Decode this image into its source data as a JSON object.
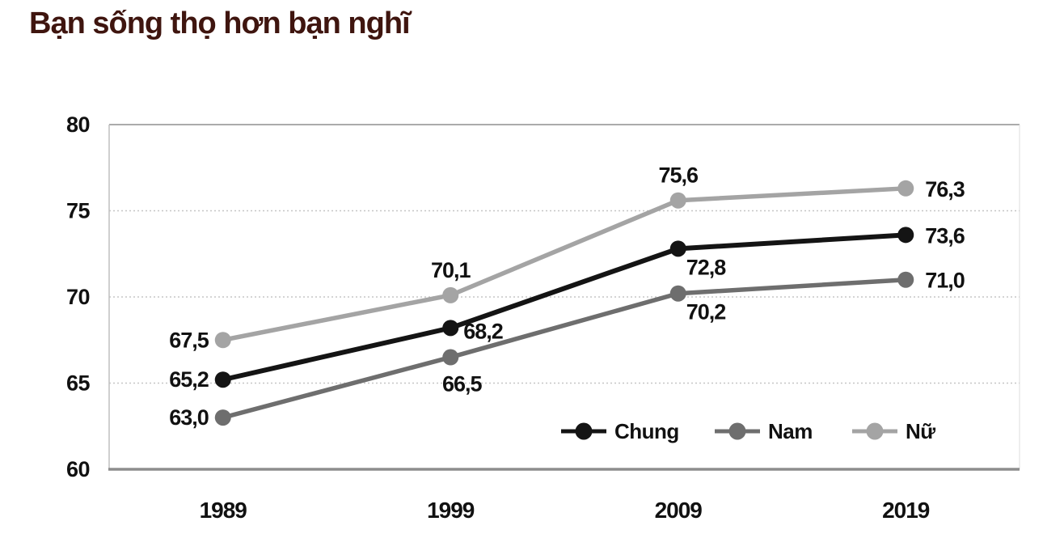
{
  "page": {
    "background": "#ffffff"
  },
  "title": {
    "text": "Bạn sống thọ hơn bạn nghĩ",
    "color": "#3f150f"
  },
  "chart_data": {
    "type": "line",
    "title": "Bạn sống thọ hơn bạn nghĩ",
    "categories": [
      "1989",
      "1999",
      "2009",
      "2019"
    ],
    "series": [
      {
        "name": "Chung",
        "color": "#141414",
        "values": [
          65.2,
          68.2,
          72.8,
          73.6
        ],
        "labels": [
          "65,2",
          "68,2",
          "72,8",
          "73,6"
        ],
        "label_anchors": [
          "left",
          "right-down",
          "below-right",
          "right"
        ]
      },
      {
        "name": "Nam",
        "color": "#6e6e6e",
        "values": [
          63.0,
          66.5,
          70.2,
          71.0
        ],
        "labels": [
          "63,0",
          "66,5",
          "70,2",
          "71,0"
        ],
        "label_anchors": [
          "left",
          "below",
          "below-right",
          "right"
        ]
      },
      {
        "name": "Nữ",
        "color": "#a4a4a4",
        "values": [
          67.5,
          70.1,
          75.6,
          76.3
        ],
        "labels": [
          "67,5",
          "70,1",
          "75,6",
          "76,3"
        ],
        "label_anchors": [
          "left",
          "above",
          "above",
          "right"
        ]
      }
    ],
    "xlabel": "",
    "ylabel": "",
    "ylim": [
      60,
      80
    ],
    "yticks": [
      "80",
      "75",
      "70",
      "65",
      "60"
    ],
    "ytick_values": [
      80,
      75,
      70,
      65,
      60
    ],
    "grid": "horizontal-dotted",
    "legend_position": "bottom-inside-right",
    "legend": [
      "Chung",
      "Nam",
      "Nữ"
    ],
    "decimal_separator": ",",
    "colors": {
      "text": "#111111",
      "grid": "#c6c6c6",
      "axis_top": "#ababab",
      "axis_bottom": "#8d8d8d",
      "axis_left": "#bfbfbf",
      "axis_right": "#dedede"
    }
  }
}
